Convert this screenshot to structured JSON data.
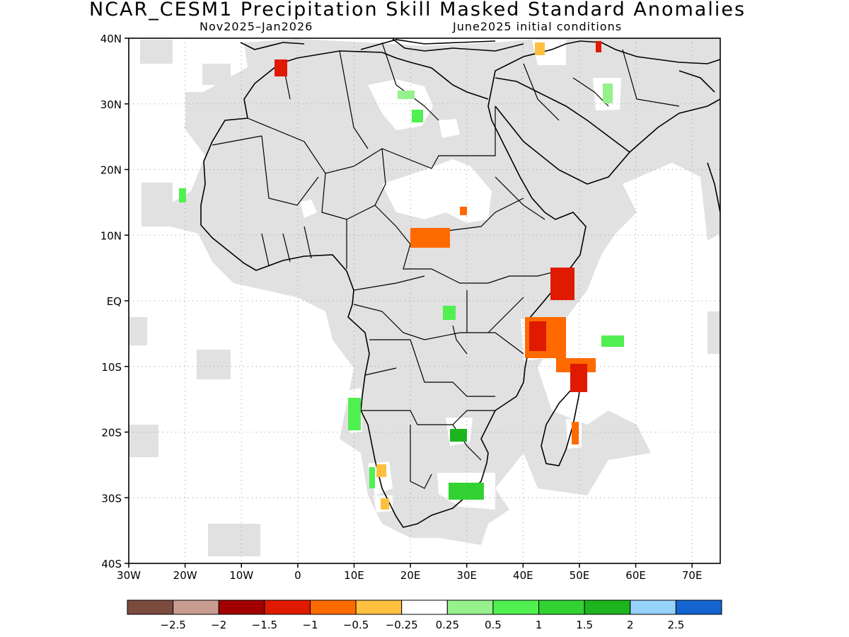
{
  "title": "NCAR_CESM1 Precipitation Skill Masked Standard Anomalies",
  "subtitle_left": "Nov2025–Jan2026",
  "subtitle_right": "June2025 initial conditions",
  "lat_labels": [
    "40N",
    "30N",
    "20N",
    "10N",
    "EQ",
    "10S",
    "20S",
    "30S",
    "40S"
  ],
  "lon_labels": [
    "30W",
    "20W",
    "10W",
    "0",
    "10E",
    "20E",
    "30E",
    "40E",
    "50E",
    "60E",
    "70E"
  ],
  "colorbar": {
    "colors": [
      "#7b4b3e",
      "#c89c90",
      "#a00000",
      "#e01a00",
      "#ff6a00",
      "#ffc040",
      "#ffffff",
      "#96f08c",
      "#50f050",
      "#32d232",
      "#1eb41e",
      "#96d2fa",
      "#1464d2"
    ],
    "labels": [
      "−2.5",
      "−2",
      "−1.5",
      "−1",
      "−0.5",
      "−0.25",
      "0.25",
      "0.5",
      "1",
      "1.5",
      "2",
      "2.5"
    ]
  },
  "colors": {
    "masked": "#e1e1e1",
    "grid": "#9a9a9a"
  }
}
